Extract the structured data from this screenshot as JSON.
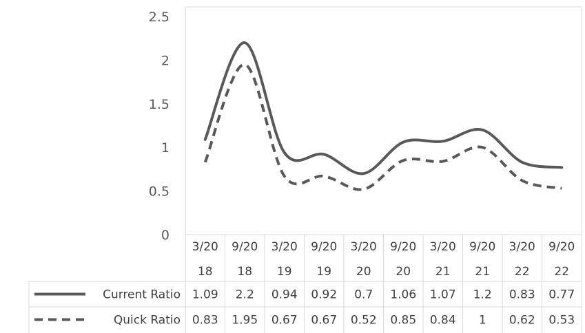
{
  "chart_data": {
    "type": "line",
    "title": "",
    "xlabel": "",
    "ylabel": "",
    "ylim": [
      0,
      2.5
    ],
    "yticks": [
      "0",
      "0.5",
      "1",
      "1.5",
      "2",
      "2.5"
    ],
    "grid": false,
    "legend": "data-table-left",
    "categories": [
      {
        "line1": "3/20",
        "line2": "18"
      },
      {
        "line1": "9/20",
        "line2": "18"
      },
      {
        "line1": "3/20",
        "line2": "19"
      },
      {
        "line1": "9/20",
        "line2": "19"
      },
      {
        "line1": "3/20",
        "line2": "20"
      },
      {
        "line1": "9/20",
        "line2": "20"
      },
      {
        "line1": "3/20",
        "line2": "21"
      },
      {
        "line1": "9/20",
        "line2": "21"
      },
      {
        "line1": "3/20",
        "line2": "22"
      },
      {
        "line1": "9/20",
        "line2": "22"
      }
    ],
    "series": [
      {
        "name": "Current Ratio",
        "style": "solid",
        "color": "#595959",
        "values": [
          1.09,
          2.2,
          0.94,
          0.92,
          0.7,
          1.06,
          1.07,
          1.2,
          0.83,
          0.77
        ],
        "labels": [
          "1.09",
          "2.2",
          "0.94",
          "0.92",
          "0.7",
          "1.06",
          "1.07",
          "1.2",
          "0.83",
          "0.77"
        ]
      },
      {
        "name": "Quick Ratio",
        "style": "dashed",
        "color": "#595959",
        "values": [
          0.83,
          1.95,
          0.67,
          0.67,
          0.52,
          0.85,
          0.84,
          1,
          0.62,
          0.53
        ],
        "labels": [
          "0.83",
          "1.95",
          "0.67",
          "0.67",
          "0.52",
          "0.85",
          "0.84",
          "1",
          "0.62",
          "0.53"
        ]
      }
    ]
  }
}
